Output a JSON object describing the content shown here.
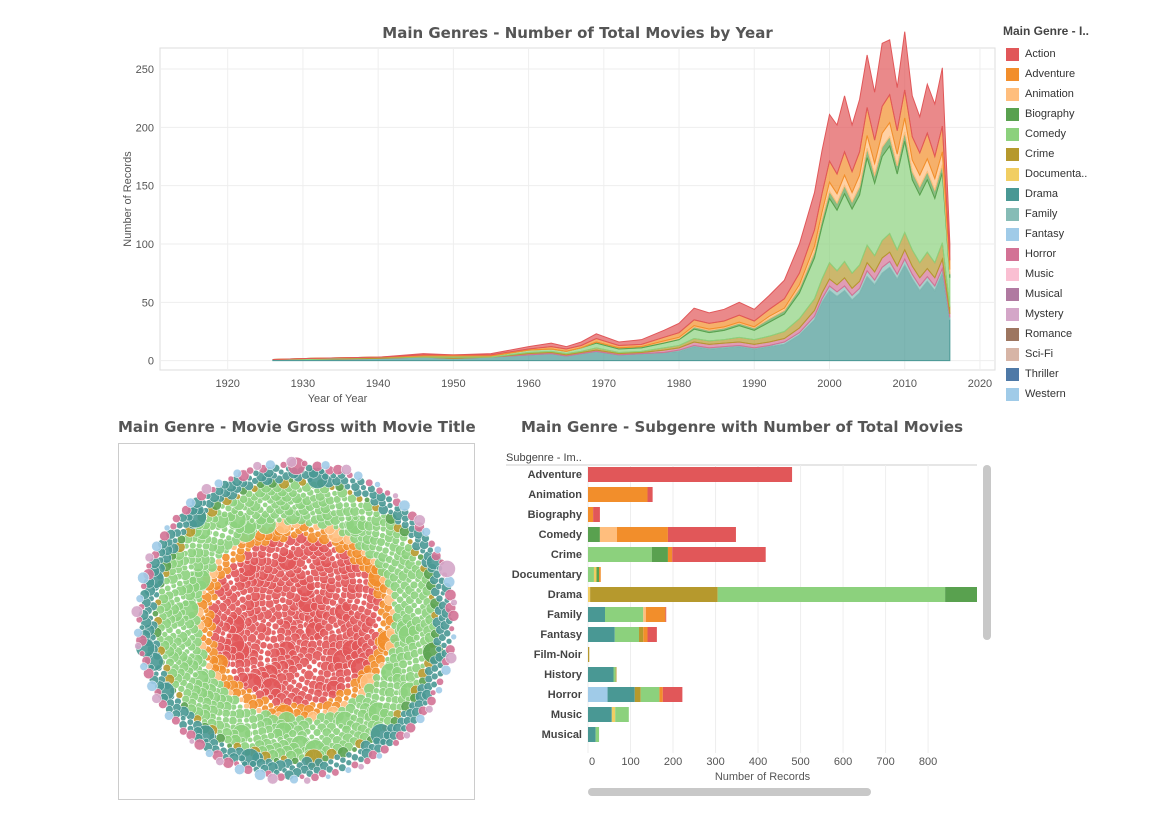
{
  "colors": {
    "Action": "#e15759",
    "Adventure": "#f28e2b",
    "Animation": "#ffbe7d",
    "Biography": "#59a14f",
    "Comedy": "#8cd17d",
    "Crime": "#b6992d",
    "Documentary": "#f1ce63",
    "Drama": "#499894",
    "Family": "#86bcb6",
    "Fantasy": "#a0cbe8",
    "Horror": "#d37295",
    "Music": "#fabfd2",
    "Musical": "#b07aa1",
    "Mystery": "#d4a6c8",
    "Romance": "#9d7660",
    "Sci-Fi": "#d7b5a6",
    "Thriller": "#4e79a7",
    "Western": "#a0cbe8"
  },
  "legend": {
    "title": "Main Genre - I..",
    "items": [
      {
        "label": "Action",
        "key": "Action"
      },
      {
        "label": "Adventure",
        "key": "Adventure"
      },
      {
        "label": "Animation",
        "key": "Animation"
      },
      {
        "label": "Biography",
        "key": "Biography"
      },
      {
        "label": "Comedy",
        "key": "Comedy"
      },
      {
        "label": "Crime",
        "key": "Crime"
      },
      {
        "label": "Documenta..",
        "key": "Documentary"
      },
      {
        "label": "Drama",
        "key": "Drama"
      },
      {
        "label": "Family",
        "key": "Family"
      },
      {
        "label": "Fantasy",
        "key": "Fantasy"
      },
      {
        "label": "Horror",
        "key": "Horror"
      },
      {
        "label": "Music",
        "key": "Music"
      },
      {
        "label": "Musical",
        "key": "Musical"
      },
      {
        "label": "Mystery",
        "key": "Mystery"
      },
      {
        "label": "Romance",
        "key": "Romance"
      },
      {
        "label": "Sci-Fi",
        "key": "Sci-Fi"
      },
      {
        "label": "Thriller",
        "key": "Thriller"
      },
      {
        "label": "Western",
        "key": "Western"
      }
    ]
  },
  "chart_data": [
    {
      "type": "area",
      "title": "Main Genres - Number of Total Movies by Year",
      "xlabel": "Year of Year",
      "ylabel": "Number of Records",
      "xlim": [
        1911,
        2022
      ],
      "ylim": [
        -8,
        268
      ],
      "x_ticks": [
        1920,
        1930,
        1940,
        1950,
        1960,
        1970,
        1980,
        1990,
        2000,
        2010,
        2020
      ],
      "y_ticks": [
        0,
        50,
        100,
        150,
        200,
        250
      ],
      "grid": true,
      "legend_position": "right",
      "x": [
        1926,
        1931,
        1940,
        1946,
        1950,
        1955,
        1960,
        1963,
        1965,
        1967,
        1969,
        1972,
        1975,
        1978,
        1980,
        1982,
        1984,
        1986,
        1988,
        1990,
        1992,
        1994,
        1996,
        1998,
        1999,
        2000,
        2001,
        2002,
        2003,
        2004,
        2005,
        2006,
        2007,
        2008,
        2009,
        2010,
        2011,
        2012,
        2013,
        2014,
        2015,
        2016
      ],
      "series": [
        {
          "name": "Drama",
          "values": [
            1,
            1,
            2,
            3,
            2,
            3,
            5,
            6,
            4,
            6,
            8,
            5,
            6,
            7,
            8,
            12,
            10,
            11,
            12,
            10,
            12,
            14,
            22,
            35,
            50,
            60,
            55,
            60,
            52,
            58,
            72,
            65,
            75,
            80,
            70,
            82,
            70,
            60,
            68,
            60,
            75,
            35
          ]
        },
        {
          "name": "Family",
          "values": [
            0,
            0,
            0,
            0,
            0,
            0,
            0,
            0,
            0,
            0,
            0,
            0,
            0,
            0,
            1,
            1,
            1,
            1,
            1,
            1,
            1,
            2,
            2,
            3,
            3,
            4,
            4,
            4,
            4,
            4,
            5,
            4,
            5,
            5,
            4,
            5,
            4,
            4,
            4,
            4,
            4,
            2
          ]
        },
        {
          "name": "Horror",
          "values": [
            0,
            0,
            0,
            0,
            0,
            0,
            1,
            1,
            1,
            1,
            1,
            1,
            1,
            2,
            2,
            3,
            3,
            3,
            3,
            3,
            3,
            3,
            4,
            5,
            5,
            6,
            6,
            7,
            6,
            6,
            7,
            7,
            8,
            8,
            7,
            8,
            7,
            7,
            7,
            7,
            8,
            3
          ]
        },
        {
          "name": "Crime",
          "values": [
            0,
            0,
            1,
            0,
            1,
            0,
            1,
            1,
            1,
            1,
            2,
            1,
            1,
            2,
            2,
            3,
            3,
            3,
            4,
            4,
            5,
            6,
            8,
            10,
            12,
            14,
            12,
            14,
            13,
            14,
            15,
            14,
            15,
            16,
            14,
            15,
            14,
            13,
            14,
            13,
            14,
            6
          ]
        },
        {
          "name": "Comedy",
          "values": [
            0,
            1,
            0,
            1,
            1,
            1,
            2,
            2,
            2,
            3,
            4,
            3,
            3,
            4,
            5,
            8,
            7,
            8,
            10,
            8,
            12,
            15,
            22,
            35,
            45,
            55,
            52,
            58,
            55,
            60,
            75,
            62,
            72,
            75,
            65,
            78,
            60,
            58,
            62,
            55,
            60,
            25
          ]
        },
        {
          "name": "Biography",
          "values": [
            0,
            0,
            0,
            0,
            0,
            0,
            0,
            0,
            0,
            0,
            1,
            1,
            1,
            1,
            1,
            2,
            2,
            2,
            2,
            2,
            3,
            3,
            4,
            5,
            6,
            6,
            6,
            7,
            6,
            7,
            8,
            7,
            8,
            8,
            7,
            8,
            7,
            7,
            7,
            7,
            7,
            3
          ]
        },
        {
          "name": "Animation",
          "values": [
            0,
            0,
            0,
            0,
            0,
            0,
            0,
            0,
            0,
            0,
            0,
            0,
            0,
            1,
            1,
            1,
            1,
            1,
            1,
            1,
            2,
            2,
            3,
            5,
            6,
            8,
            8,
            9,
            8,
            10,
            11,
            10,
            12,
            12,
            10,
            12,
            10,
            10,
            11,
            10,
            11,
            4
          ]
        },
        {
          "name": "Adventure",
          "values": [
            0,
            0,
            0,
            1,
            1,
            1,
            1,
            2,
            2,
            2,
            3,
            2,
            2,
            3,
            4,
            5,
            5,
            5,
            6,
            5,
            6,
            8,
            10,
            14,
            16,
            18,
            17,
            20,
            18,
            20,
            24,
            20,
            23,
            24,
            20,
            24,
            20,
            19,
            22,
            19,
            22,
            8
          ]
        },
        {
          "name": "Action",
          "values": [
            0,
            0,
            0,
            1,
            0,
            1,
            2,
            3,
            2,
            3,
            4,
            3,
            4,
            6,
            8,
            10,
            9,
            10,
            11,
            10,
            12,
            16,
            25,
            32,
            37,
            40,
            42,
            48,
            40,
            45,
            45,
            41,
            54,
            47,
            37,
            50,
            35,
            31,
            42,
            45,
            50,
            14
          ]
        }
      ]
    },
    {
      "type": "bubble",
      "title": "Main Genre - Movie Gross with Movie Title",
      "rings": [
        {
          "name": "Action",
          "count": 480
        },
        {
          "name": "Adventure",
          "count": 140
        },
        {
          "name": "Animation",
          "count": 40
        },
        {
          "name": "Comedy",
          "count": 620
        },
        {
          "name": "Crime",
          "count": 40
        },
        {
          "name": "Biography",
          "count": 40
        },
        {
          "name": "Drama",
          "count": 260
        },
        {
          "name": "Horror",
          "count": 70
        },
        {
          "name": "Fantasy",
          "count": 30
        },
        {
          "name": "Mystery",
          "count": 20
        }
      ]
    },
    {
      "type": "bar",
      "orientation": "horizontal",
      "stacked": true,
      "title": "Main Genre - Subgenre with Number of Total Movies",
      "row_header": "Subgenre - Im..",
      "xlabel": "Number of Records",
      "xlim": [
        0,
        915
      ],
      "x_ticks": [
        0,
        100,
        200,
        300,
        400,
        500,
        600,
        700,
        800
      ],
      "categories": [
        "Adventure",
        "Animation",
        "Biography",
        "Comedy",
        "Crime",
        "Documentary",
        "Drama",
        "Family",
        "Fantasy",
        "Film-Noir",
        "History",
        "Horror",
        "Music",
        "Musical"
      ],
      "segments": [
        [
          {
            "genre": "Action",
            "value": 480
          }
        ],
        [
          {
            "genre": "Adventure",
            "value": 140
          },
          {
            "genre": "Action",
            "value": 12
          }
        ],
        [
          {
            "genre": "Adventure",
            "value": 12
          },
          {
            "genre": "Action",
            "value": 16
          }
        ],
        [
          {
            "genre": "Biography",
            "value": 28
          },
          {
            "genre": "Animation",
            "value": 40
          },
          {
            "genre": "Adventure",
            "value": 120
          },
          {
            "genre": "Action",
            "value": 160
          }
        ],
        [
          {
            "genre": "Comedy",
            "value": 150
          },
          {
            "genre": "Biography",
            "value": 38
          },
          {
            "genre": "Adventure",
            "value": 10
          },
          {
            "genre": "Action",
            "value": 220
          }
        ],
        [
          {
            "genre": "Comedy",
            "value": 14
          },
          {
            "genre": "Documentary",
            "value": 6
          },
          {
            "genre": "Biography",
            "value": 6
          },
          {
            "genre": "Adventure",
            "value": 4
          }
        ],
        [
          {
            "genre": "Documentary",
            "value": 5
          },
          {
            "genre": "Crime",
            "value": 300
          },
          {
            "genre": "Comedy",
            "value": 535
          },
          {
            "genre": "Biography",
            "value": 90
          }
        ],
        [
          {
            "genre": "Drama",
            "value": 40
          },
          {
            "genre": "Comedy",
            "value": 90
          },
          {
            "genre": "Animation",
            "value": 6
          },
          {
            "genre": "Adventure",
            "value": 46
          },
          {
            "genre": "Action",
            "value": 2
          }
        ],
        [
          {
            "genre": "Drama",
            "value": 63
          },
          {
            "genre": "Comedy",
            "value": 57
          },
          {
            "genre": "Crime",
            "value": 10
          },
          {
            "genre": "Adventure",
            "value": 10
          },
          {
            "genre": "Action",
            "value": 22
          }
        ],
        [
          {
            "genre": "Crime",
            "value": 3
          }
        ],
        [
          {
            "genre": "Drama",
            "value": 60
          },
          {
            "genre": "Comedy",
            "value": 5
          },
          {
            "genre": "Crime",
            "value": 2
          }
        ],
        [
          {
            "genre": "Fantasy",
            "value": 46
          },
          {
            "genre": "Drama",
            "value": 64
          },
          {
            "genre": "Crime",
            "value": 14
          },
          {
            "genre": "Comedy",
            "value": 44
          },
          {
            "genre": "Adventure",
            "value": 8
          },
          {
            "genre": "Action",
            "value": 46
          }
        ],
        [
          {
            "genre": "Drama",
            "value": 56
          },
          {
            "genre": "Documentary",
            "value": 8
          },
          {
            "genre": "Comedy",
            "value": 32
          }
        ],
        [
          {
            "genre": "Drama",
            "value": 18
          },
          {
            "genre": "Comedy",
            "value": 8
          }
        ]
      ]
    }
  ]
}
